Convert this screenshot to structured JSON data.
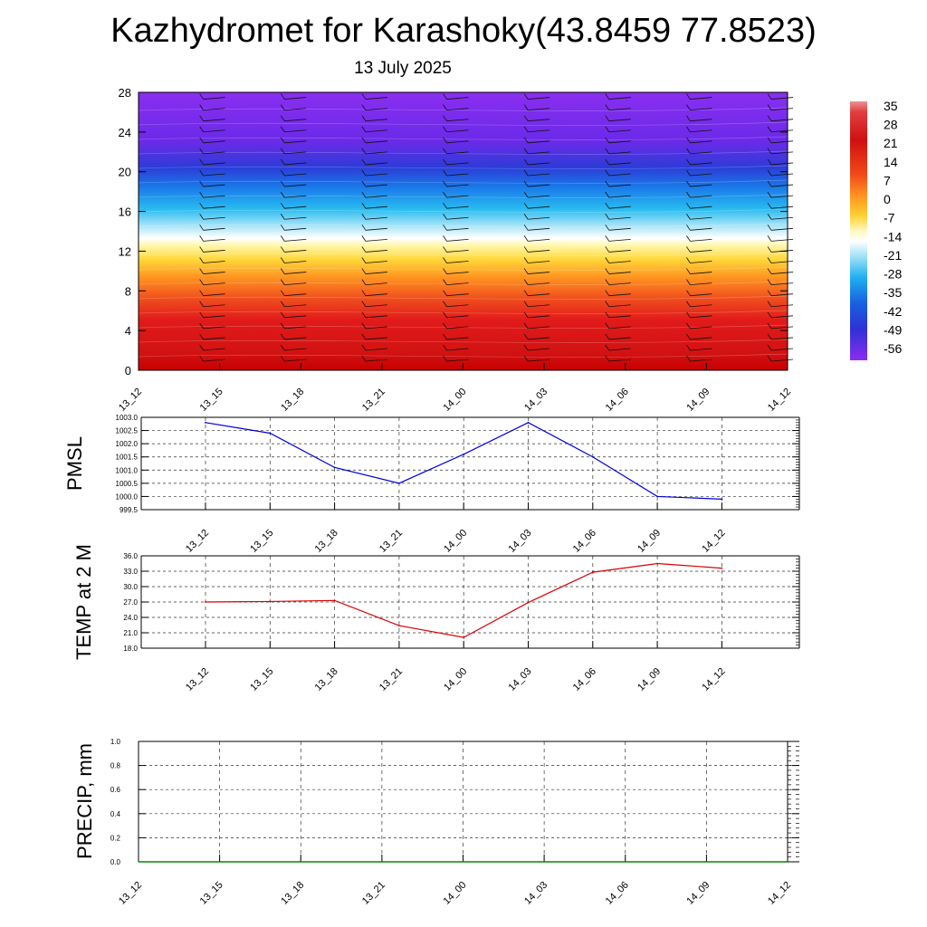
{
  "header": {
    "title": "Kazhydromet for Karashoky(43.8459 77.8523)",
    "date": "13 July 2025"
  },
  "chart_data": [
    {
      "type": "heatmap",
      "title": "Kazhydromet for Karashoky(43.8459 77.8523)",
      "subtitle": "13 July 2025",
      "x_labels": [
        "13_12",
        "13_15",
        "13_18",
        "13_21",
        "14_00",
        "14_03",
        "14_06",
        "14_09",
        "14_12"
      ],
      "y_ticks": [
        0,
        4,
        8,
        12,
        16,
        20,
        24,
        28
      ],
      "ylim": [
        0,
        28
      ],
      "colorbar": {
        "labels": [
          "35",
          "28",
          "21",
          "14",
          "7",
          "0",
          "-7",
          "-14",
          "-21",
          "-28",
          "-35",
          "-42",
          "-49",
          "-56"
        ]
      },
      "wind_barbs": true
    },
    {
      "type": "line",
      "ylabel": "PMSL",
      "x": [
        "13_12",
        "13_15",
        "13_18",
        "13_21",
        "14_00",
        "14_03",
        "14_06",
        "14_09",
        "14_12"
      ],
      "series": [
        {
          "color": "#0000dd",
          "values": [
            1002.8,
            1002.4,
            1001.1,
            1000.5,
            1001.6,
            1002.8,
            1001.5,
            1000.0,
            999.9
          ]
        }
      ],
      "ylim": [
        999.5,
        1003.0
      ],
      "y_ticks": [
        "999.5",
        "1000.0",
        "1000.5",
        "1001.0",
        "1001.5",
        "1002.0",
        "1002.5",
        "1003.0"
      ],
      "grid": true
    },
    {
      "type": "line",
      "ylabel": "TEMP at 2 M",
      "x": [
        "13_12",
        "13_15",
        "13_18",
        "13_21",
        "14_00",
        "14_03",
        "14_06",
        "14_09",
        "14_12"
      ],
      "series": [
        {
          "color": "#dd0000",
          "values": [
            27.0,
            27.1,
            27.3,
            22.4,
            20.1,
            26.9,
            32.8,
            34.5,
            33.6
          ]
        }
      ],
      "ylim": [
        18.0,
        36.0
      ],
      "y_ticks": [
        "18.0",
        "21.0",
        "24.0",
        "27.0",
        "30.0",
        "33.0",
        "36.0"
      ],
      "grid": true
    },
    {
      "type": "line",
      "ylabel": "PRECIP, mm",
      "x": [
        "13_12",
        "13_15",
        "13_18",
        "13_21",
        "14_00",
        "14_03",
        "14_06",
        "14_09",
        "14_12"
      ],
      "series": [
        {
          "color": "#008800",
          "values": [
            0,
            0,
            0,
            0,
            0,
            0,
            0,
            0,
            0
          ]
        }
      ],
      "ylim": [
        0.0,
        1.0
      ],
      "y_ticks": [
        "0.0",
        "0.2",
        "0.4",
        "0.6",
        "0.8",
        "1.0"
      ],
      "grid": true
    }
  ]
}
